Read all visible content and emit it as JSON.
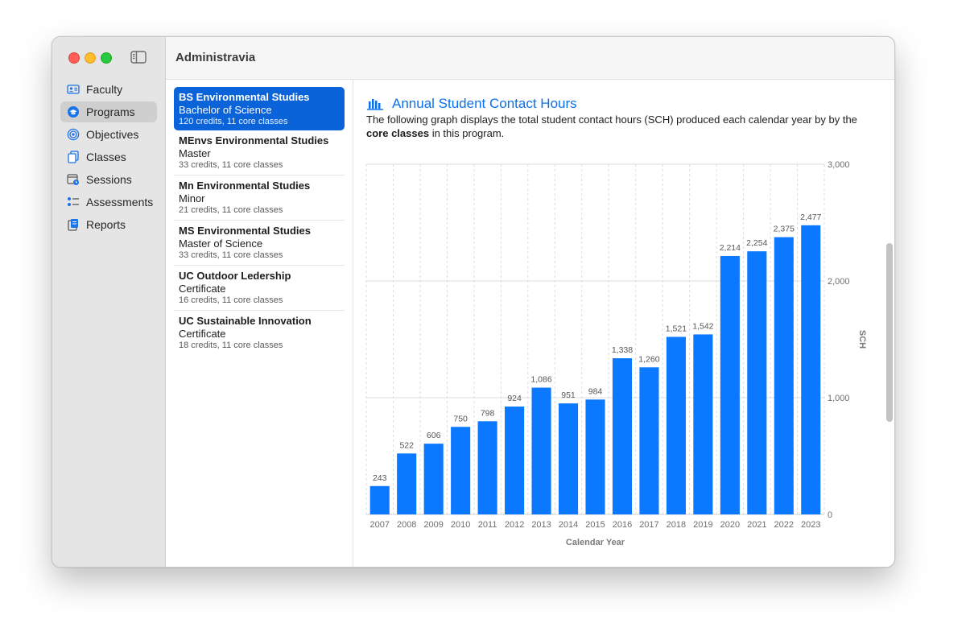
{
  "app": {
    "title": "Administravia"
  },
  "sidebar": {
    "items": [
      {
        "label": "Faculty",
        "icon": "person-card-icon",
        "active": false
      },
      {
        "label": "Programs",
        "icon": "graduation-cap-icon",
        "active": true
      },
      {
        "label": "Objectives",
        "icon": "target-icon",
        "active": false
      },
      {
        "label": "Classes",
        "icon": "documents-icon",
        "active": false
      },
      {
        "label": "Sessions",
        "icon": "calendar-clock-icon",
        "active": false
      },
      {
        "label": "Assessments",
        "icon": "checklist-icon",
        "active": false
      },
      {
        "label": "Reports",
        "icon": "report-icon",
        "active": false
      }
    ]
  },
  "programs": [
    {
      "name": "BS Environmental Studies",
      "degree": "Bachelor of Science",
      "meta": "120 credits, 11 core classes",
      "selected": true
    },
    {
      "name": "MEnvs Environmental Studies",
      "degree": "Master",
      "meta": "33 credits, 11 core classes",
      "selected": false
    },
    {
      "name": "Mn Environmental Studies",
      "degree": "Minor",
      "meta": "21 credits, 11 core classes",
      "selected": false
    },
    {
      "name": "MS Environmental Studies",
      "degree": "Master of Science",
      "meta": "33 credits, 11 core classes",
      "selected": false
    },
    {
      "name": "UC Outdoor Ledership",
      "degree": "Certificate",
      "meta": "16 credits, 11 core classes",
      "selected": false
    },
    {
      "name": "UC Sustainable Innovation",
      "degree": "Certificate",
      "meta": "18 credits, 11 core classes",
      "selected": false
    }
  ],
  "detail": {
    "title": "Annual Student Contact Hours",
    "desc_pre": "The following graph displays the total student contact hours (SCH) produced each calendar year by by the ",
    "desc_bold": "core classes",
    "desc_post": " in this program."
  },
  "colors": {
    "accent": "#0a63d8",
    "bar": "#0a78ff",
    "title": "#0a70ee"
  },
  "chart_data": {
    "type": "bar",
    "categories": [
      "2007",
      "2008",
      "2009",
      "2010",
      "2011",
      "2012",
      "2013",
      "2014",
      "2015",
      "2016",
      "2017",
      "2018",
      "2019",
      "2020",
      "2021",
      "2022",
      "2023"
    ],
    "values": [
      243,
      522,
      606,
      750,
      798,
      924,
      1086,
      951,
      984,
      1338,
      1260,
      1521,
      1542,
      2214,
      2254,
      2375,
      2477
    ],
    "value_labels": [
      "243",
      "522",
      "606",
      "750",
      "798",
      "924",
      "1,086",
      "951",
      "984",
      "1,338",
      "1,260",
      "1,521",
      "1,542",
      "2,214",
      "2,254",
      "2,375",
      "2,477"
    ],
    "xlabel": "Calendar Year",
    "ylabel": "SCH",
    "ylim": [
      0,
      3000
    ],
    "yticks": [
      0,
      1000,
      2000,
      3000
    ],
    "ytick_labels": [
      "0",
      "1,000",
      "2,000",
      "3,000"
    ],
    "grid": true,
    "y_axis_side": "right"
  }
}
